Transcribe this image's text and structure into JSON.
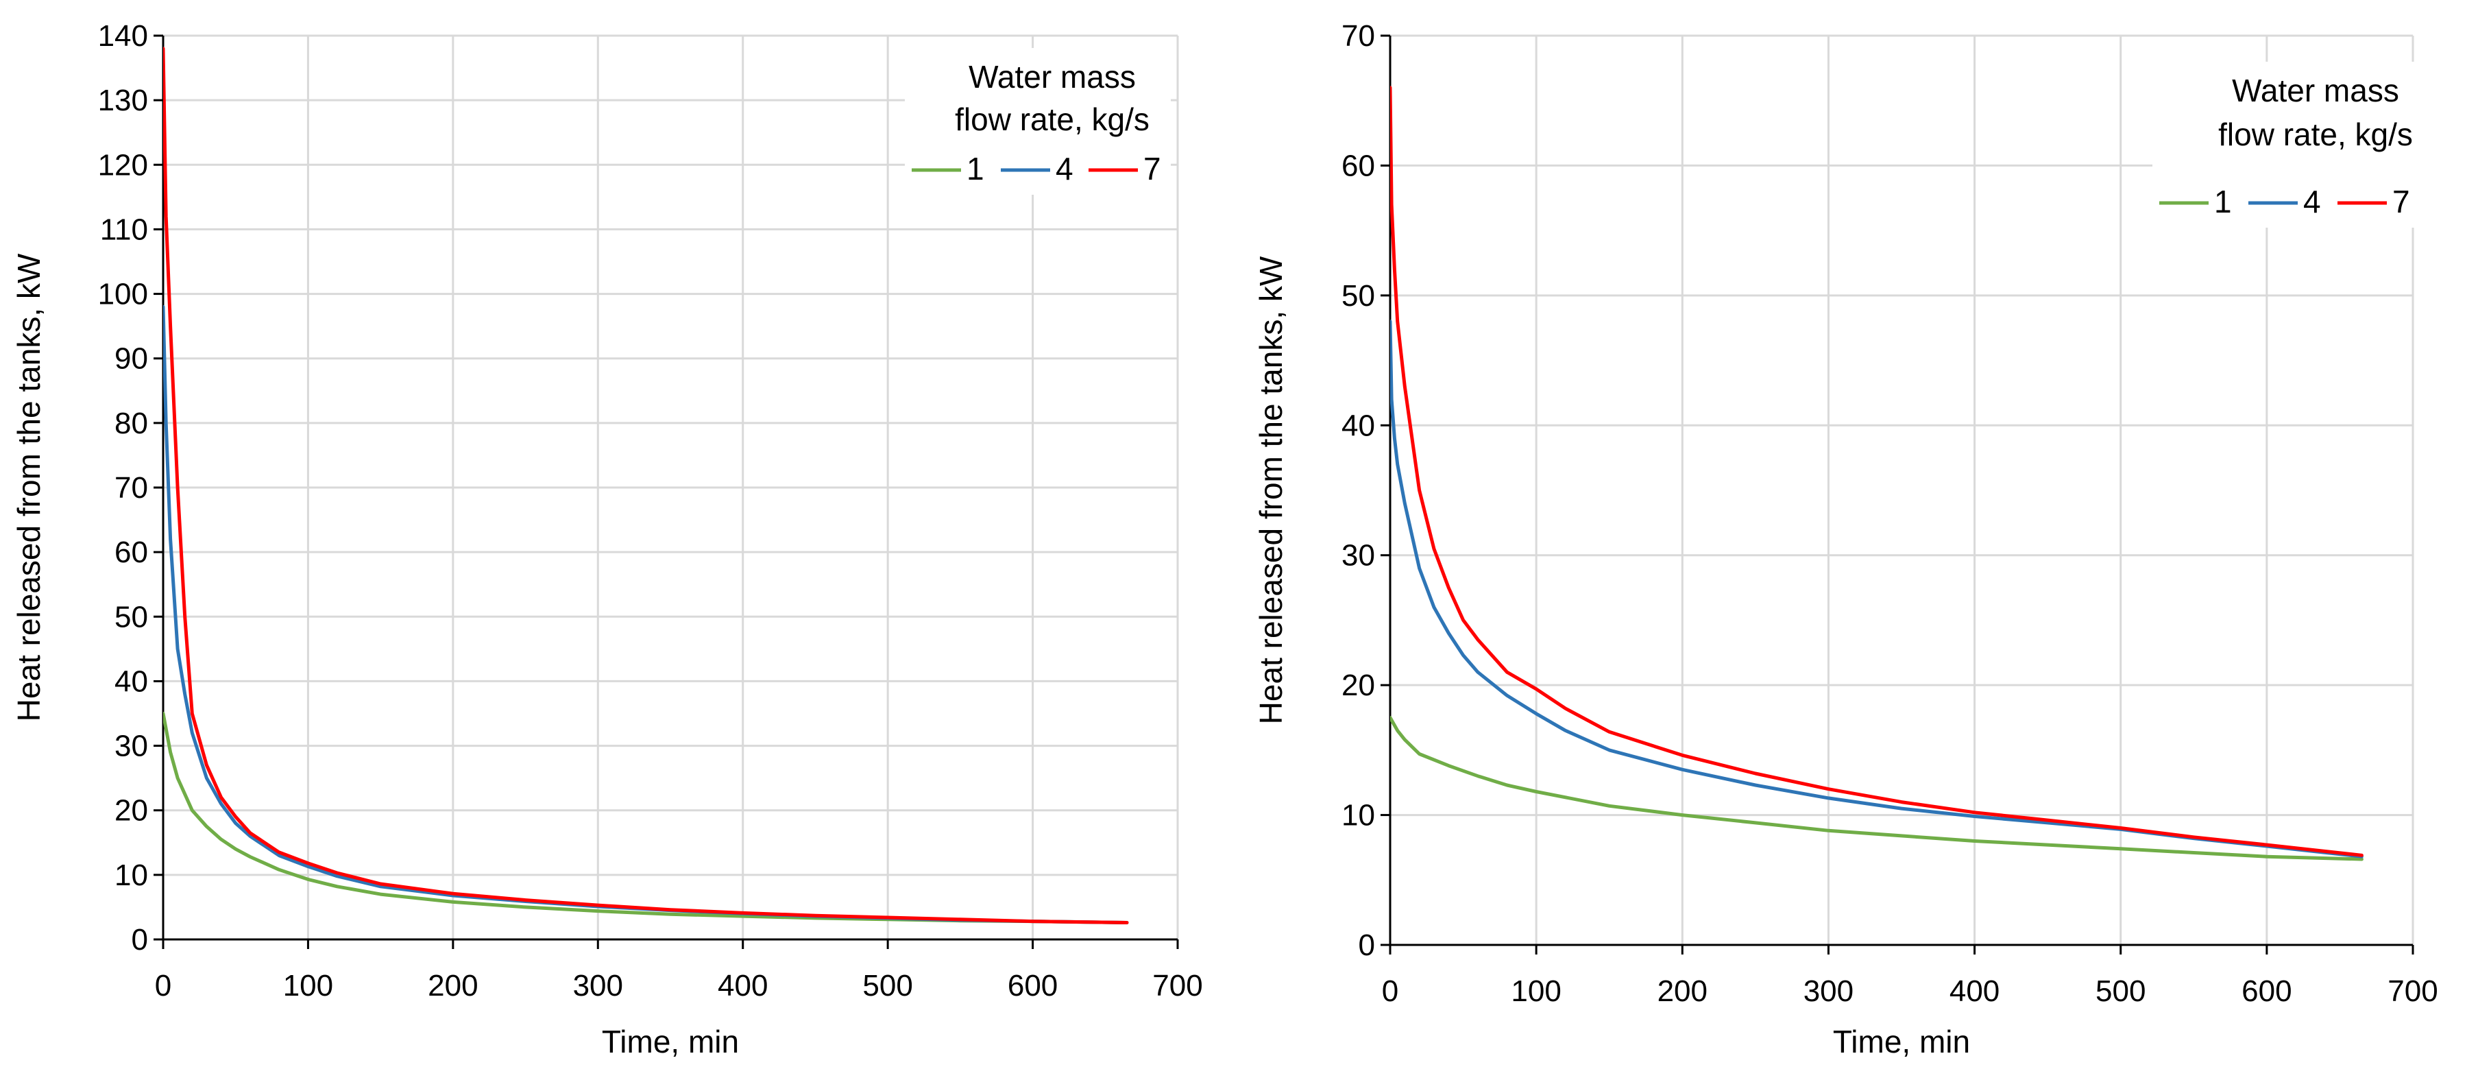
{
  "chart_data": [
    {
      "type": "line",
      "title": "",
      "xlabel": "Time, min",
      "ylabel": "Heat released from the tanks, kW",
      "xlim": [
        0,
        700
      ],
      "ylim": [
        0,
        140
      ],
      "xticks": [
        0,
        100,
        200,
        300,
        400,
        500,
        600,
        700
      ],
      "yticks": [
        0,
        10,
        20,
        30,
        40,
        50,
        60,
        70,
        80,
        90,
        100,
        110,
        120,
        130,
        140
      ],
      "grid": true,
      "legend": {
        "title_line1": "Water mass",
        "title_line2": "flow rate, kg/s",
        "placement": "top-right"
      },
      "series": [
        {
          "name": "1",
          "color": "#70AD47",
          "x": [
            0,
            5,
            10,
            20,
            30,
            40,
            50,
            60,
            80,
            100,
            120,
            150,
            200,
            250,
            300,
            350,
            400,
            450,
            500,
            550,
            600,
            665
          ],
          "y": [
            35,
            29,
            25,
            20,
            17.5,
            15.5,
            14,
            12.8,
            10.8,
            9.3,
            8.2,
            7,
            5.8,
            5,
            4.4,
            3.9,
            3.6,
            3.3,
            3.1,
            2.9,
            2.8,
            2.6
          ]
        },
        {
          "name": "4",
          "color": "#2E75B6",
          "x": [
            0,
            2,
            5,
            10,
            15,
            20,
            30,
            40,
            50,
            60,
            80,
            100,
            120,
            150,
            200,
            250,
            300,
            350,
            400,
            450,
            500,
            550,
            600,
            665
          ],
          "y": [
            98,
            80,
            62,
            45,
            38,
            32,
            25,
            21,
            18,
            16,
            13,
            11.3,
            9.8,
            8.2,
            6.8,
            5.9,
            5.1,
            4.5,
            4,
            3.6,
            3.3,
            3,
            2.8,
            2.6
          ]
        },
        {
          "name": "7",
          "color": "#FF0000",
          "x": [
            0,
            2,
            5,
            10,
            15,
            20,
            30,
            40,
            50,
            60,
            80,
            100,
            120,
            150,
            200,
            250,
            300,
            350,
            400,
            450,
            500,
            550,
            600,
            665
          ],
          "y": [
            138,
            112,
            95,
            70,
            50,
            35,
            27,
            22,
            19,
            16.5,
            13.5,
            11.8,
            10.3,
            8.6,
            7.1,
            6.1,
            5.3,
            4.6,
            4.1,
            3.7,
            3.4,
            3.1,
            2.8,
            2.6
          ]
        }
      ]
    },
    {
      "type": "line",
      "title": "",
      "xlabel": "Time, min",
      "ylabel": "Heat released from the tanks, kW",
      "xlim": [
        0,
        700
      ],
      "ylim": [
        0,
        70
      ],
      "xticks": [
        0,
        100,
        200,
        300,
        400,
        500,
        600,
        700
      ],
      "yticks": [
        0,
        10,
        20,
        30,
        40,
        50,
        60,
        70
      ],
      "grid": true,
      "legend": {
        "title_line1": "Water mass",
        "title_line2": "flow rate, kg/s",
        "placement": "top-right"
      },
      "series": [
        {
          "name": "1",
          "color": "#70AD47",
          "x": [
            0,
            5,
            10,
            20,
            40,
            60,
            80,
            100,
            150,
            200,
            250,
            300,
            350,
            400,
            450,
            500,
            550,
            600,
            665
          ],
          "y": [
            17.5,
            16.5,
            15.8,
            14.7,
            13.8,
            13,
            12.3,
            11.8,
            10.7,
            10,
            9.4,
            8.8,
            8.4,
            8,
            7.7,
            7.4,
            7.1,
            6.8,
            6.6
          ]
        },
        {
          "name": "4",
          "color": "#2E75B6",
          "x": [
            0,
            1,
            3,
            5,
            10,
            20,
            30,
            40,
            50,
            60,
            80,
            100,
            120,
            150,
            200,
            250,
            300,
            350,
            400,
            450,
            500,
            550,
            600,
            665
          ],
          "y": [
            48,
            42,
            39,
            37,
            34,
            29,
            26,
            24,
            22.3,
            21,
            19.2,
            17.8,
            16.5,
            15,
            13.5,
            12.3,
            11.3,
            10.5,
            9.9,
            9.4,
            8.9,
            8.2,
            7.6,
            6.8
          ]
        },
        {
          "name": "7",
          "color": "#FF0000",
          "x": [
            0,
            1,
            3,
            5,
            10,
            20,
            30,
            40,
            50,
            60,
            80,
            100,
            120,
            150,
            200,
            250,
            300,
            350,
            400,
            450,
            500,
            550,
            600,
            665
          ],
          "y": [
            66,
            57,
            52,
            48,
            43,
            35,
            30.5,
            27.5,
            25,
            23.5,
            21,
            19.7,
            18.2,
            16.4,
            14.6,
            13.2,
            12,
            11,
            10.2,
            9.6,
            9,
            8.3,
            7.7,
            6.9
          ]
        }
      ]
    }
  ]
}
